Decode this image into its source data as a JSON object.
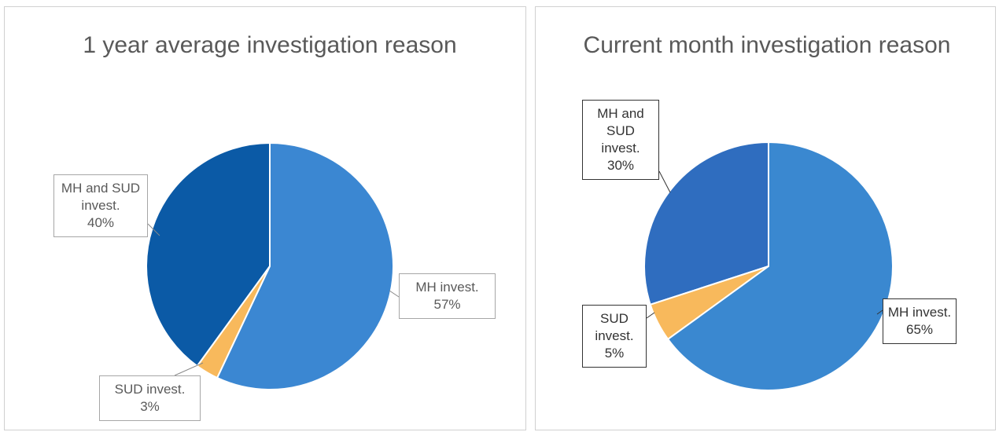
{
  "chart_data": [
    {
      "type": "pie",
      "title": "1 year average investigation reason",
      "categories": [
        "MH invest.",
        "SUD invest.",
        "MH and SUD invest."
      ],
      "values": [
        57,
        3,
        40
      ],
      "value_labels": [
        "57%",
        "3%",
        "40%"
      ],
      "colors": [
        "#3b87d2",
        "#f8b95c",
        "#0b5aa6"
      ]
    },
    {
      "type": "pie",
      "title": "Current month investigation reason",
      "categories": [
        "MH invest.",
        "SUD invest.",
        "MH and SUD invest."
      ],
      "values": [
        65,
        5,
        30
      ],
      "value_labels": [
        "65%",
        "5%",
        "30%"
      ],
      "colors": [
        "#3a88d0",
        "#f8b95c",
        "#2f6dbf"
      ]
    }
  ]
}
